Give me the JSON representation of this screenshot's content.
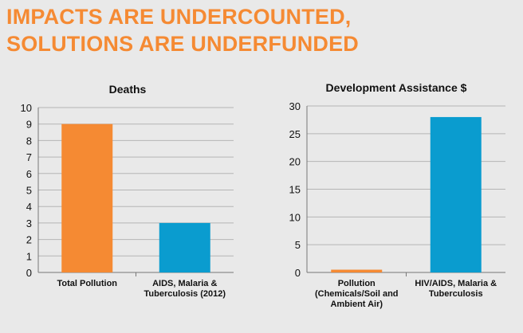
{
  "slide": {
    "title_line1": "IMPACTS ARE UNDERCOUNTED,",
    "title_line2": "SOLUTIONS ARE UNDERFUNDED"
  },
  "colors": {
    "pollution": "#f58a33",
    "disease": "#0a9ccf",
    "title": "#f58a33"
  },
  "chart_data": [
    {
      "type": "bar",
      "title": "Deaths",
      "categories": [
        [
          "Total Pollution"
        ],
        [
          "AIDS, Malaria &",
          "Tuberculosis (2012)"
        ]
      ],
      "values": [
        9,
        3
      ],
      "ylim": [
        0,
        10
      ],
      "yticks": [
        0,
        1,
        2,
        3,
        4,
        5,
        6,
        7,
        8,
        9,
        10
      ],
      "grid": true,
      "xlabel": "",
      "ylabel": ""
    },
    {
      "type": "bar",
      "title": "Development Assistance $",
      "categories": [
        [
          "Pollution",
          "(Chemicals/Soil and",
          "Ambient Air)"
        ],
        [
          "HIV/AIDS, Malaria &",
          "Tuberculosis"
        ]
      ],
      "values": [
        0.5,
        28
      ],
      "ylim": [
        0,
        30
      ],
      "yticks": [
        0,
        5,
        10,
        15,
        20,
        25,
        30
      ],
      "grid": true,
      "xlabel": "",
      "ylabel": ""
    }
  ]
}
